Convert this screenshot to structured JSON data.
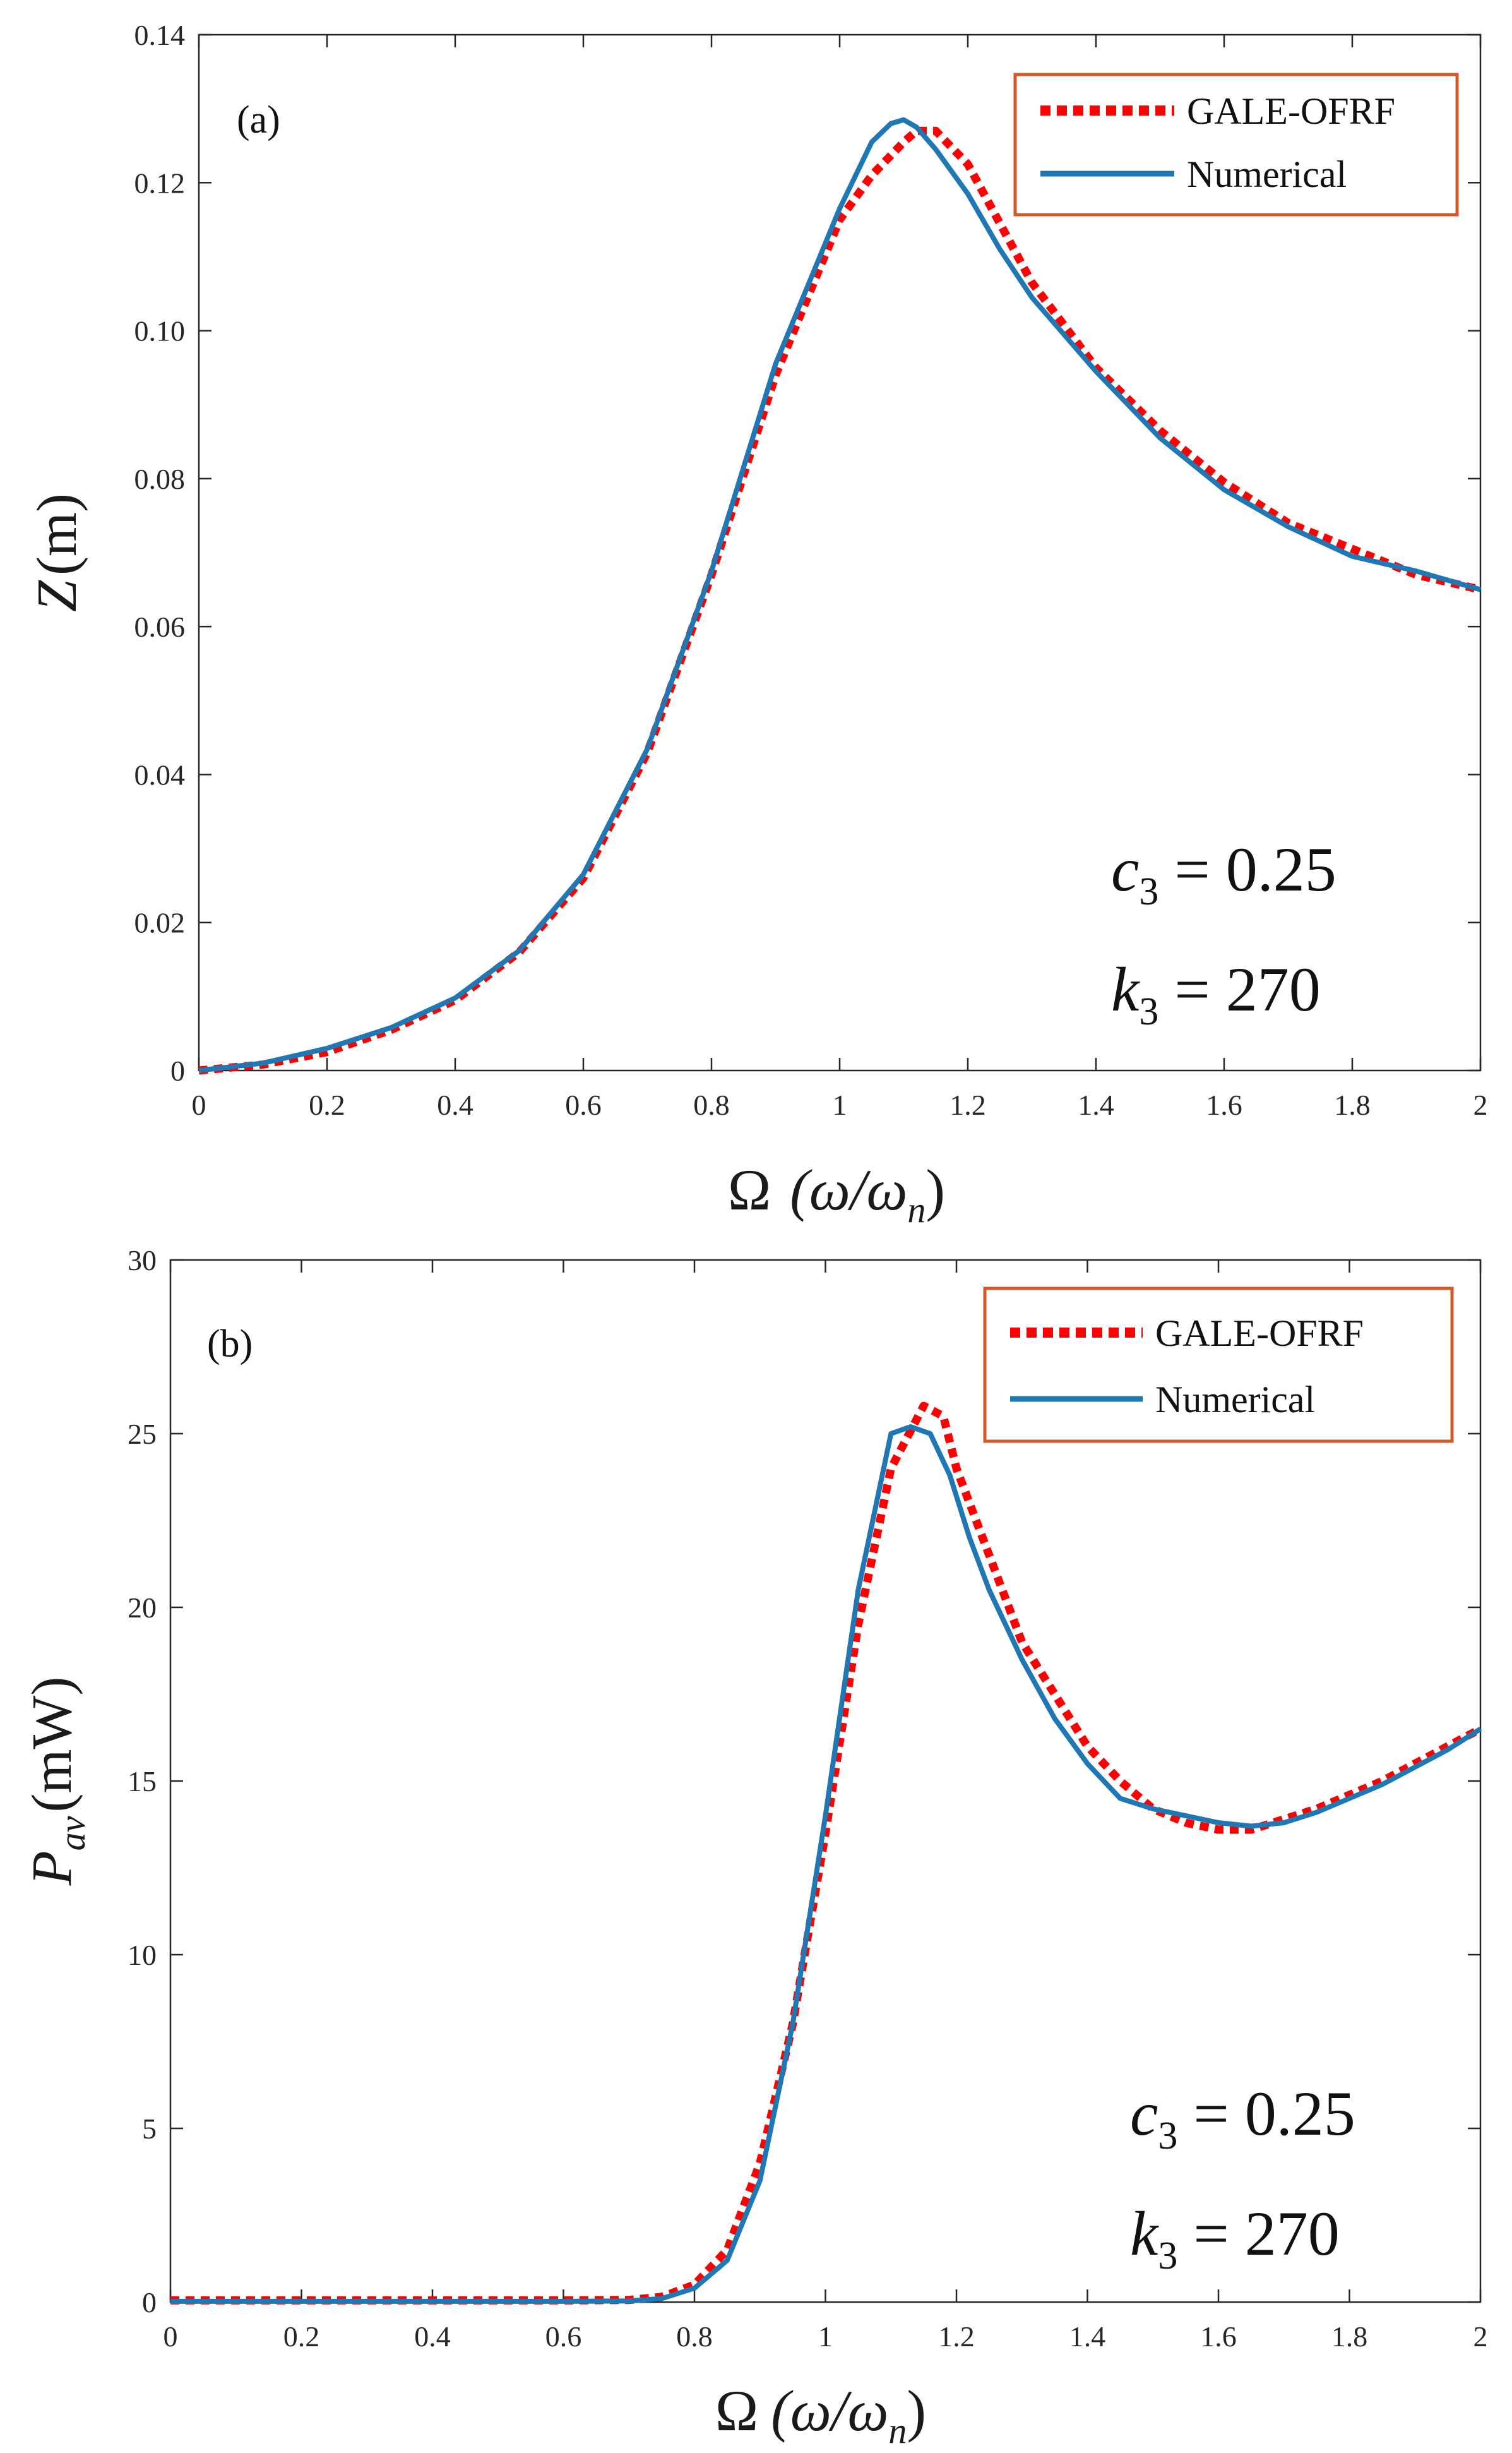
{
  "chart_data": [
    {
      "type": "line",
      "panel_label": "(a)",
      "ylabel": {
        "var": "Z",
        "unit": "(m)"
      },
      "xlabel": {
        "omega_cap": "Ω",
        "ratio": "(ω/ω",
        "sub": "n",
        "close": ")"
      },
      "xlim": [
        0,
        2
      ],
      "ylim": [
        0,
        0.14
      ],
      "x_ticks": [
        "0",
        "0.2",
        "0.4",
        "0.6",
        "0.8",
        "1",
        "1.2",
        "1.4",
        "1.6",
        "1.8",
        "2"
      ],
      "y_ticks": [
        "0",
        "0.02",
        "0.04",
        "0.06",
        "0.08",
        "0.10",
        "0.12",
        "0.14"
      ],
      "legend": {
        "position": "top-right",
        "entries": [
          "GALE-OFRF",
          "Numerical"
        ]
      },
      "annotations": [
        {
          "var": "c",
          "sub": "3",
          "rest": " = 0.25"
        },
        {
          "var": "k",
          "sub": "3",
          "rest": " = 270"
        }
      ],
      "series": [
        {
          "name": "GALE-OFRF",
          "color": "#ff0000",
          "style": "dotted",
          "x": [
            0,
            0.1,
            0.2,
            0.3,
            0.4,
            0.5,
            0.6,
            0.7,
            0.8,
            0.9,
            1.0,
            1.05,
            1.1,
            1.12,
            1.15,
            1.2,
            1.25,
            1.3,
            1.4,
            1.5,
            1.6,
            1.7,
            1.8,
            1.9,
            2.0
          ],
          "y": [
            0,
            0.0008,
            0.0025,
            0.0055,
            0.0095,
            0.016,
            0.026,
            0.043,
            0.067,
            0.094,
            0.115,
            0.121,
            0.1255,
            0.127,
            0.127,
            0.1225,
            0.1145,
            0.1065,
            0.095,
            0.0865,
            0.0795,
            0.074,
            0.0705,
            0.067,
            0.065
          ]
        },
        {
          "name": "Numerical",
          "color": "#1f77b4",
          "style": "solid",
          "x": [
            0,
            0.1,
            0.2,
            0.3,
            0.4,
            0.5,
            0.6,
            0.7,
            0.8,
            0.9,
            1.0,
            1.05,
            1.08,
            1.1,
            1.12,
            1.15,
            1.2,
            1.25,
            1.3,
            1.4,
            1.5,
            1.6,
            1.7,
            1.8,
            1.9,
            2.0
          ],
          "y": [
            0,
            0.001,
            0.003,
            0.0058,
            0.0098,
            0.0162,
            0.0265,
            0.0435,
            0.0675,
            0.0955,
            0.1165,
            0.1255,
            0.128,
            0.1285,
            0.1275,
            0.1245,
            0.1185,
            0.111,
            0.1045,
            0.0945,
            0.0855,
            0.0785,
            0.0735,
            0.0695,
            0.0675,
            0.065
          ]
        }
      ]
    },
    {
      "type": "line",
      "panel_label": "(b)",
      "ylabel": {
        "var": "P",
        "sub": "av",
        "unit": "(mW)"
      },
      "xlabel": {
        "omega_cap": "Ω",
        "ratio": "(ω/ω",
        "sub": "n",
        "close": ")"
      },
      "xlim": [
        0,
        2
      ],
      "ylim": [
        0,
        30
      ],
      "x_ticks": [
        "0",
        "0.2",
        "0.4",
        "0.6",
        "0.8",
        "1",
        "1.2",
        "1.4",
        "1.6",
        "1.8",
        "2"
      ],
      "y_ticks": [
        "0",
        "5",
        "10",
        "15",
        "20",
        "25",
        "30"
      ],
      "legend": {
        "position": "top-right",
        "entries": [
          "GALE-OFRF",
          "Numerical"
        ]
      },
      "annotations": [
        {
          "var": "c",
          "sub": "3",
          "rest": " = 0.25"
        },
        {
          "var": "k",
          "sub": "3",
          "rest": " = 270"
        }
      ],
      "series": [
        {
          "name": "GALE-OFRF",
          "color": "#ff0000",
          "style": "dotted",
          "x": [
            0,
            0.2,
            0.4,
            0.6,
            0.7,
            0.75,
            0.8,
            0.85,
            0.9,
            0.95,
            1.0,
            1.05,
            1.1,
            1.15,
            1.18,
            1.2,
            1.25,
            1.3,
            1.35,
            1.4,
            1.45,
            1.5,
            1.55,
            1.6,
            1.65,
            1.7,
            1.75,
            1.8,
            1.85,
            1.9,
            1.95,
            2.0
          ],
          "y": [
            0.05,
            0.05,
            0.05,
            0.05,
            0.06,
            0.15,
            0.5,
            1.5,
            4.0,
            8.0,
            13.5,
            19.5,
            24.0,
            25.8,
            25.5,
            24.0,
            21.5,
            19.0,
            17.5,
            16.0,
            15.0,
            14.2,
            13.8,
            13.6,
            13.6,
            13.9,
            14.2,
            14.6,
            15.0,
            15.5,
            16.0,
            16.5
          ]
        },
        {
          "name": "Numerical",
          "color": "#1f77b4",
          "style": "solid",
          "x": [
            0,
            0.2,
            0.4,
            0.6,
            0.7,
            0.75,
            0.8,
            0.85,
            0.9,
            0.95,
            1.0,
            1.05,
            1.1,
            1.13,
            1.16,
            1.19,
            1.22,
            1.25,
            1.3,
            1.35,
            1.4,
            1.45,
            1.5,
            1.55,
            1.6,
            1.65,
            1.7,
            1.75,
            1.8,
            1.85,
            1.9,
            1.95,
            2.0
          ],
          "y": [
            0.02,
            0.02,
            0.02,
            0.02,
            0.03,
            0.1,
            0.4,
            1.2,
            3.5,
            8.0,
            14.0,
            20.5,
            25.0,
            25.2,
            25.0,
            23.8,
            22.0,
            20.5,
            18.5,
            16.8,
            15.5,
            14.5,
            14.2,
            14.0,
            13.8,
            13.7,
            13.8,
            14.1,
            14.5,
            14.9,
            15.4,
            15.9,
            16.5
          ]
        }
      ]
    }
  ]
}
